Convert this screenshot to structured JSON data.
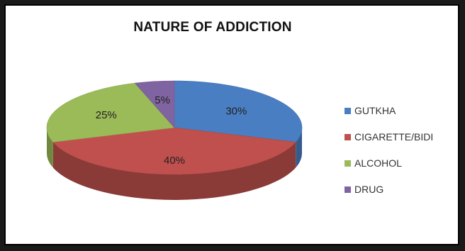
{
  "chart_data": {
    "type": "pie",
    "title": "NATURE OF ADDICTION",
    "categories": [
      "GUTKHA",
      "CIGARETTE/BIDI",
      "ALCOHOL",
      "DRUG"
    ],
    "values": [
      30,
      40,
      25,
      5
    ],
    "labels": [
      "30%",
      "40%",
      "25%",
      "5%"
    ],
    "colors": [
      "#4a7ec2",
      "#c0504d",
      "#9bbb59",
      "#8064a2"
    ],
    "legend_position": "right",
    "three_d": true
  }
}
